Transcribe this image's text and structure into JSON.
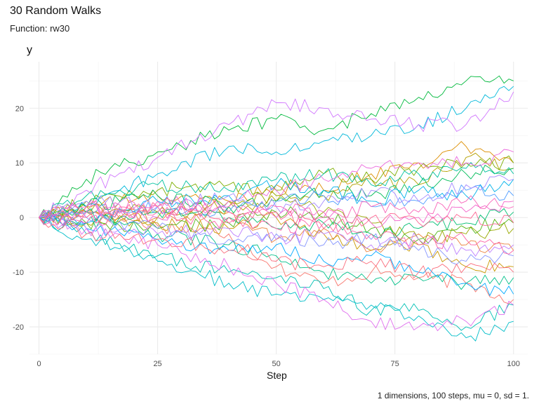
{
  "title": "30 Random Walks",
  "subtitle": "Function: rw30",
  "caption": "1 dimensions, 100 steps, mu = 0, sd = 1.",
  "chart_data": {
    "type": "line",
    "title": "30 Random Walks",
    "subtitle": "Function: rw30",
    "xlabel": "Step",
    "ylabel": "y",
    "xlim": [
      -2,
      103
    ],
    "ylim": [
      -25,
      28.5
    ],
    "x_ticks": [
      0,
      25,
      50,
      75,
      100
    ],
    "y_ticks": [
      -20,
      -10,
      0,
      10,
      20
    ],
    "grid": true,
    "legend": "none",
    "series": [
      {
        "color": "#F8766D",
        "values": [
          [
            0,
            0
          ],
          [
            10,
            1.2
          ],
          [
            25,
            -1.5
          ],
          [
            40,
            -3
          ],
          [
            50,
            -9
          ],
          [
            60,
            -12
          ],
          [
            70,
            -10
          ],
          [
            80,
            -11
          ],
          [
            90,
            -12
          ],
          [
            100,
            -15
          ]
        ]
      },
      {
        "color": "#EC823C",
        "values": [
          [
            0,
            0
          ],
          [
            10,
            1
          ],
          [
            25,
            0
          ],
          [
            40,
            1
          ],
          [
            50,
            -4
          ],
          [
            60,
            -2
          ],
          [
            70,
            -6
          ],
          [
            80,
            -3
          ],
          [
            90,
            -5
          ],
          [
            100,
            -6
          ]
        ]
      },
      {
        "color": "#DC8E00",
        "values": [
          [
            0,
            0
          ],
          [
            10,
            2
          ],
          [
            25,
            4
          ],
          [
            40,
            3
          ],
          [
            50,
            6
          ],
          [
            60,
            5
          ],
          [
            70,
            8
          ],
          [
            80,
            10
          ],
          [
            90,
            13
          ],
          [
            100,
            10
          ]
        ]
      },
      {
        "color": "#C99800",
        "values": [
          [
            0,
            0
          ],
          [
            10,
            1
          ],
          [
            25,
            -1
          ],
          [
            40,
            -2
          ],
          [
            50,
            0
          ],
          [
            60,
            -3
          ],
          [
            70,
            -6
          ],
          [
            80,
            -5
          ],
          [
            90,
            -9
          ],
          [
            100,
            -9
          ]
        ]
      },
      {
        "color": "#B3A000",
        "values": [
          [
            0,
            0
          ],
          [
            10,
            -1
          ],
          [
            25,
            0
          ],
          [
            40,
            2
          ],
          [
            50,
            3
          ],
          [
            60,
            4
          ],
          [
            70,
            7
          ],
          [
            80,
            6
          ],
          [
            90,
            11
          ],
          [
            100,
            9
          ]
        ]
      },
      {
        "color": "#99A800",
        "values": [
          [
            0,
            0
          ],
          [
            10,
            2
          ],
          [
            25,
            1
          ],
          [
            40,
            3
          ],
          [
            50,
            4
          ],
          [
            60,
            1
          ],
          [
            70,
            -1
          ],
          [
            80,
            -4
          ],
          [
            90,
            -3
          ],
          [
            100,
            -2
          ]
        ]
      },
      {
        "color": "#7CAE00",
        "values": [
          [
            0,
            0
          ],
          [
            10,
            3
          ],
          [
            25,
            5
          ],
          [
            40,
            6
          ],
          [
            50,
            5
          ],
          [
            60,
            8
          ],
          [
            70,
            7
          ],
          [
            80,
            9
          ],
          [
            90,
            10
          ],
          [
            100,
            10
          ]
        ]
      },
      {
        "color": "#52B415",
        "values": [
          [
            0,
            0
          ],
          [
            10,
            -1
          ],
          [
            25,
            -2
          ],
          [
            40,
            -1
          ],
          [
            50,
            1
          ],
          [
            60,
            0
          ],
          [
            70,
            -2
          ],
          [
            80,
            -4
          ],
          [
            90,
            -2
          ],
          [
            100,
            -1
          ]
        ]
      },
      {
        "color": "#00B93C",
        "values": [
          [
            0,
            0
          ],
          [
            10,
            7
          ],
          [
            25,
            12
          ],
          [
            40,
            16
          ],
          [
            50,
            18
          ],
          [
            60,
            16
          ],
          [
            70,
            19
          ],
          [
            80,
            22
          ],
          [
            90,
            25
          ],
          [
            100,
            25
          ]
        ]
      },
      {
        "color": "#00BC59",
        "values": [
          [
            0,
            0
          ],
          [
            10,
            2
          ],
          [
            25,
            4
          ],
          [
            40,
            2
          ],
          [
            50,
            3
          ],
          [
            60,
            5
          ],
          [
            70,
            4
          ],
          [
            80,
            6
          ],
          [
            90,
            8
          ],
          [
            100,
            9
          ]
        ]
      },
      {
        "color": "#00BE72",
        "values": [
          [
            0,
            0
          ],
          [
            10,
            -1
          ],
          [
            25,
            1
          ],
          [
            40,
            0
          ],
          [
            50,
            -2
          ],
          [
            60,
            -1
          ],
          [
            70,
            -3
          ],
          [
            80,
            -2
          ],
          [
            90,
            -1
          ],
          [
            100,
            1
          ]
        ]
      },
      {
        "color": "#00C089",
        "values": [
          [
            0,
            0
          ],
          [
            10,
            1
          ],
          [
            25,
            -3
          ],
          [
            40,
            -5
          ],
          [
            50,
            -7
          ],
          [
            60,
            -10
          ],
          [
            70,
            -12
          ],
          [
            80,
            -11
          ],
          [
            90,
            -12
          ],
          [
            100,
            -11
          ]
        ]
      },
      {
        "color": "#00C19F",
        "values": [
          [
            0,
            0
          ],
          [
            10,
            4
          ],
          [
            25,
            6
          ],
          [
            40,
            5
          ],
          [
            50,
            7
          ],
          [
            60,
            8
          ],
          [
            70,
            6
          ],
          [
            80,
            8
          ],
          [
            90,
            9
          ],
          [
            100,
            8
          ]
        ]
      },
      {
        "color": "#00C0B4",
        "values": [
          [
            0,
            0
          ],
          [
            10,
            -3
          ],
          [
            25,
            -7
          ],
          [
            40,
            -10
          ],
          [
            50,
            -11
          ],
          [
            60,
            -13
          ],
          [
            70,
            -17
          ],
          [
            80,
            -17
          ],
          [
            90,
            -20
          ],
          [
            100,
            -16
          ]
        ]
      },
      {
        "color": "#00BDC8",
        "values": [
          [
            0,
            0
          ],
          [
            10,
            -4
          ],
          [
            25,
            -8
          ],
          [
            40,
            -12
          ],
          [
            50,
            -14
          ],
          [
            60,
            -15
          ],
          [
            70,
            -16
          ],
          [
            80,
            -18
          ],
          [
            90,
            -22
          ],
          [
            100,
            -19
          ]
        ]
      },
      {
        "color": "#00B8DA",
        "values": [
          [
            0,
            0
          ],
          [
            10,
            2
          ],
          [
            25,
            8
          ],
          [
            40,
            13
          ],
          [
            50,
            12
          ],
          [
            60,
            14
          ],
          [
            70,
            15
          ],
          [
            80,
            17
          ],
          [
            90,
            20
          ],
          [
            100,
            24
          ]
        ]
      },
      {
        "color": "#00B1EA",
        "values": [
          [
            0,
            0
          ],
          [
            10,
            -1
          ],
          [
            25,
            3
          ],
          [
            40,
            4
          ],
          [
            50,
            6
          ],
          [
            60,
            5
          ],
          [
            70,
            3
          ],
          [
            80,
            5
          ],
          [
            90,
            4
          ],
          [
            100,
            7
          ]
        ]
      },
      {
        "color": "#00A9FF",
        "values": [
          [
            0,
            0
          ],
          [
            10,
            -2
          ],
          [
            25,
            -4
          ],
          [
            40,
            -6
          ],
          [
            50,
            -5
          ],
          [
            60,
            -8
          ],
          [
            70,
            -7
          ],
          [
            80,
            -10
          ],
          [
            90,
            -12
          ],
          [
            100,
            -14
          ]
        ]
      },
      {
        "color": "#529EFF",
        "values": [
          [
            0,
            0
          ],
          [
            10,
            1
          ],
          [
            25,
            2
          ],
          [
            40,
            1
          ],
          [
            50,
            3
          ],
          [
            60,
            4
          ],
          [
            70,
            2
          ],
          [
            80,
            3
          ],
          [
            90,
            5
          ],
          [
            100,
            4
          ]
        ]
      },
      {
        "color": "#8494FF",
        "values": [
          [
            0,
            0
          ],
          [
            10,
            0
          ],
          [
            25,
            -2
          ],
          [
            40,
            -4
          ],
          [
            50,
            -3
          ],
          [
            60,
            -5
          ],
          [
            70,
            -4
          ],
          [
            80,
            -6
          ],
          [
            90,
            -8
          ],
          [
            100,
            -7
          ]
        ]
      },
      {
        "color": "#A58AFF",
        "values": [
          [
            0,
            0
          ],
          [
            10,
            3
          ],
          [
            25,
            2
          ],
          [
            40,
            4
          ],
          [
            50,
            2
          ],
          [
            60,
            3
          ],
          [
            70,
            5
          ],
          [
            80,
            3
          ],
          [
            90,
            6
          ],
          [
            100,
            7
          ]
        ]
      },
      {
        "color": "#BE80FF",
        "values": [
          [
            0,
            0
          ],
          [
            10,
            -2
          ],
          [
            25,
            -3
          ],
          [
            40,
            -2
          ],
          [
            50,
            -4
          ],
          [
            60,
            -3
          ],
          [
            70,
            -5
          ],
          [
            80,
            -4
          ],
          [
            90,
            -6
          ],
          [
            100,
            -5
          ]
        ]
      },
      {
        "color": "#D177FE",
        "values": [
          [
            0,
            0
          ],
          [
            10,
            5
          ],
          [
            25,
            11
          ],
          [
            40,
            17
          ],
          [
            50,
            21
          ],
          [
            60,
            20
          ],
          [
            70,
            18
          ],
          [
            80,
            17
          ],
          [
            90,
            17
          ],
          [
            100,
            23
          ]
        ]
      },
      {
        "color": "#E06FEE",
        "values": [
          [
            0,
            0
          ],
          [
            10,
            -2
          ],
          [
            25,
            -5
          ],
          [
            40,
            -9
          ],
          [
            50,
            -12
          ],
          [
            60,
            -15
          ],
          [
            70,
            -19
          ],
          [
            80,
            -20
          ],
          [
            90,
            -19
          ],
          [
            100,
            -16
          ]
        ]
      },
      {
        "color": "#EB69DD",
        "values": [
          [
            0,
            0
          ],
          [
            10,
            2
          ],
          [
            25,
            0
          ],
          [
            40,
            3
          ],
          [
            50,
            5
          ],
          [
            60,
            7
          ],
          [
            70,
            9
          ],
          [
            80,
            10
          ],
          [
            90,
            10
          ],
          [
            100,
            12
          ]
        ]
      },
      {
        "color": "#F365CB",
        "values": [
          [
            0,
            0
          ],
          [
            10,
            1
          ],
          [
            25,
            3
          ],
          [
            40,
            2
          ],
          [
            50,
            0
          ],
          [
            60,
            1
          ],
          [
            70,
            -1
          ],
          [
            80,
            0
          ],
          [
            90,
            1
          ],
          [
            100,
            3
          ]
        ]
      },
      {
        "color": "#F863B9",
        "values": [
          [
            0,
            0
          ],
          [
            10,
            -1
          ],
          [
            25,
            2
          ],
          [
            40,
            1
          ],
          [
            50,
            2
          ],
          [
            60,
            0
          ],
          [
            70,
            2
          ],
          [
            80,
            1
          ],
          [
            90,
            3
          ],
          [
            100,
            2
          ]
        ]
      },
      {
        "color": "#FC61A6",
        "values": [
          [
            0,
            0
          ],
          [
            10,
            2
          ],
          [
            25,
            1
          ],
          [
            40,
            -1
          ],
          [
            50,
            -2
          ],
          [
            60,
            -1
          ],
          [
            70,
            -3
          ],
          [
            80,
            -5
          ],
          [
            90,
            -4
          ],
          [
            100,
            -6
          ]
        ]
      },
      {
        "color": "#FD6391",
        "values": [
          [
            0,
            0
          ],
          [
            10,
            0
          ],
          [
            25,
            2
          ],
          [
            40,
            0
          ],
          [
            50,
            1
          ],
          [
            60,
            -2
          ],
          [
            70,
            0
          ],
          [
            80,
            -1
          ],
          [
            90,
            0
          ],
          [
            100,
            -1
          ]
        ]
      },
      {
        "color": "#FA6B7B",
        "values": [
          [
            0,
            0
          ],
          [
            10,
            -3
          ],
          [
            25,
            -4
          ],
          [
            40,
            -6
          ],
          [
            50,
            -8
          ],
          [
            60,
            -9
          ],
          [
            70,
            -8
          ],
          [
            80,
            -10
          ],
          [
            90,
            -9
          ],
          [
            100,
            -10
          ]
        ]
      }
    ]
  }
}
